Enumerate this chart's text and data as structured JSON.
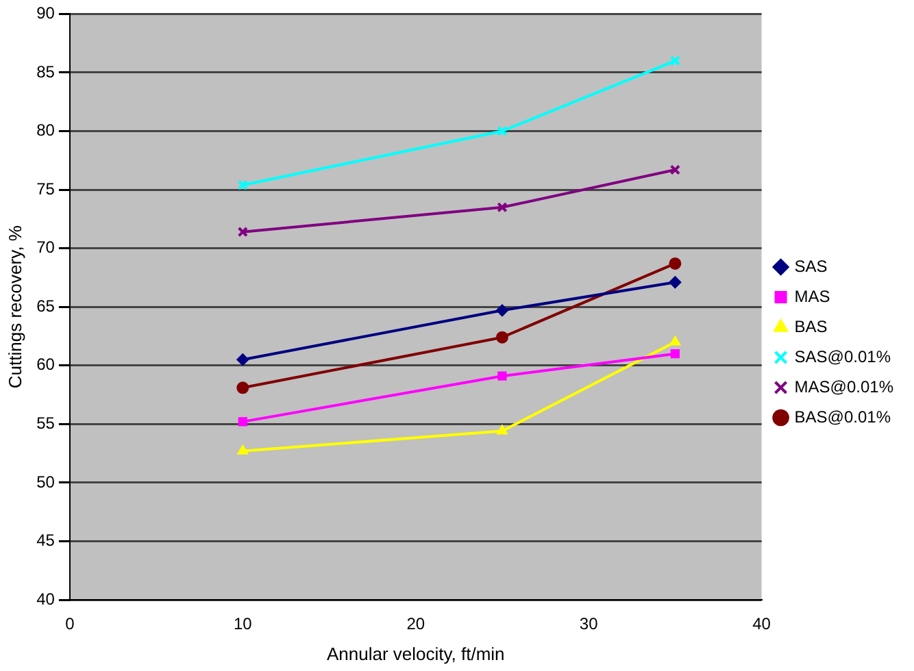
{
  "chart_data": {
    "type": "line",
    "xlabel": "Annular velocity, ft/min",
    "ylabel": "Cuttings recovery, %",
    "x": [
      10,
      25,
      35
    ],
    "xlim": [
      0,
      40
    ],
    "xticks": [
      0,
      10,
      20,
      30,
      40
    ],
    "ylim": [
      40,
      90
    ],
    "yticks": [
      40,
      45,
      50,
      55,
      60,
      65,
      70,
      75,
      80,
      85,
      90
    ],
    "grid": "y",
    "legend": "right",
    "series": [
      {
        "name": "SAS",
        "color": "#000080",
        "marker": "diamond",
        "values": [
          60.5,
          64.7,
          67.1
        ]
      },
      {
        "name": "MAS",
        "color": "#ff00ff",
        "marker": "square",
        "values": [
          55.2,
          59.1,
          61
        ]
      },
      {
        "name": "BAS",
        "color": "#ffff00",
        "marker": "triangle",
        "values": [
          52.7,
          54.4,
          62
        ]
      },
      {
        "name": "SAS@0.01%",
        "color": "#00ffff",
        "marker": "cross",
        "values": [
          75.4,
          80,
          86
        ]
      },
      {
        "name": "MAS@0.01%",
        "color": "#800080",
        "marker": "cross",
        "values": [
          71.4,
          73.5,
          76.7
        ]
      },
      {
        "name": "BAS@0.01%",
        "color": "#800000",
        "marker": "circle",
        "values": [
          58.1,
          62.4,
          68.7
        ]
      }
    ]
  }
}
